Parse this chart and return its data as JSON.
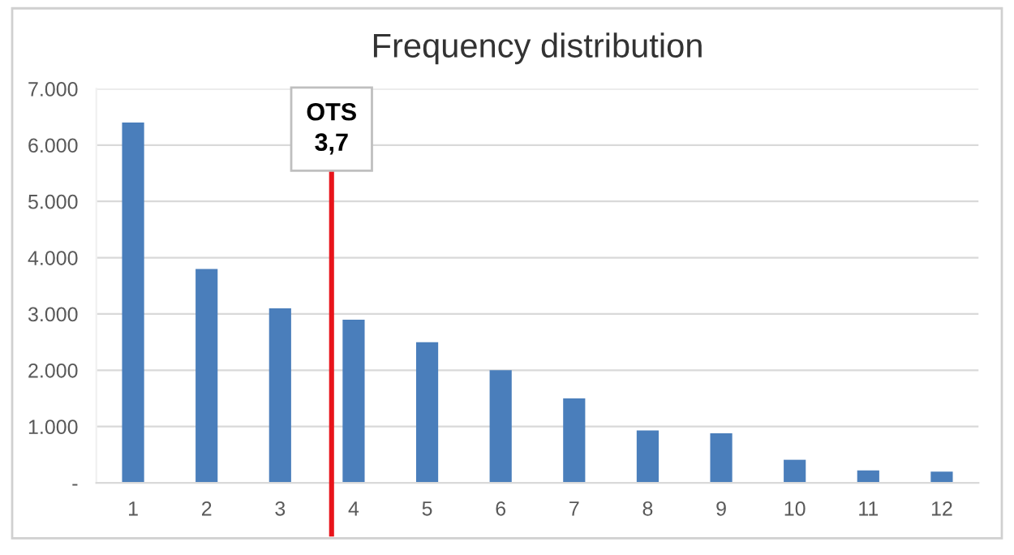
{
  "chart_data": {
    "type": "bar",
    "title": "Frequency distribution",
    "x": [
      1,
      2,
      3,
      4,
      5,
      6,
      7,
      8,
      9,
      10,
      11,
      12
    ],
    "values": [
      6400,
      3800,
      3100,
      2900,
      2500,
      2000,
      1500,
      930,
      880,
      410,
      220,
      200
    ],
    "color": "#4a7ebb",
    "xlim": [
      0.5,
      12.5
    ],
    "xticks": [
      1,
      2,
      3,
      4,
      5,
      6,
      7,
      8,
      9,
      10,
      11,
      12
    ],
    "ylim": [
      0,
      7000
    ],
    "yticks": [
      {
        "value": 0,
        "label": "-"
      },
      {
        "value": 1000,
        "label": "1.000"
      },
      {
        "value": 2000,
        "label": "2.000"
      },
      {
        "value": 3000,
        "label": "3.000"
      },
      {
        "value": 4000,
        "label": "4.000"
      },
      {
        "value": 5000,
        "label": "5.000"
      },
      {
        "value": 6000,
        "label": "6.000"
      },
      {
        "value": 7000,
        "label": "7.000"
      }
    ],
    "grid": "y",
    "ref_lines": [
      {
        "axis": "x",
        "value": 3.7,
        "label": "OTS\n3,7",
        "color": "#e8141b"
      }
    ]
  }
}
